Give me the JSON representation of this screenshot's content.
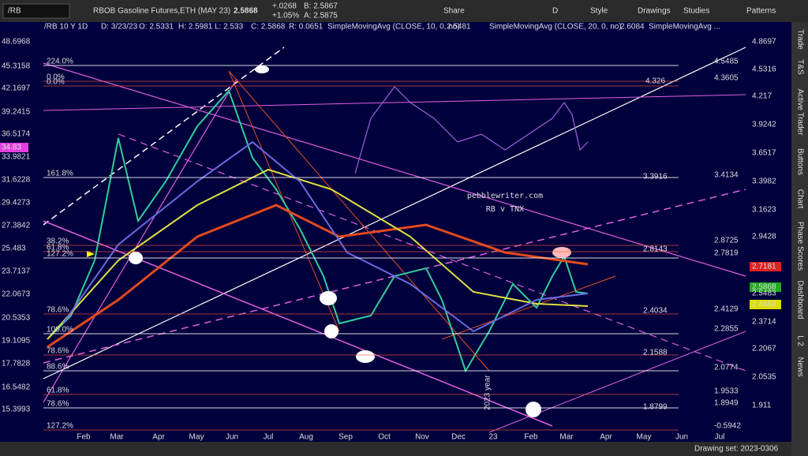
{
  "toolbar": {
    "symbol": "/RB",
    "description": "RBOB Gasoline Futures,ETH (MAY 23)",
    "last": "2.5868",
    "change": "+.0268",
    "change_pct": "+1.05%",
    "bid": "B: 2.5867",
    "ask": "A: 2.5875",
    "buttons": [
      "Share",
      "D",
      "Style",
      "Drawings",
      "Studies",
      "Patterns"
    ]
  },
  "chart_header": {
    "fields": [
      "/RB 10 Y 1D",
      "D: 3/23/23",
      "O: 2.5331",
      "H: 2.5981",
      "L: 2.533",
      "C: 2.5868",
      "R: 0.0651"
    ],
    "studies": [
      {
        "name": "SimpleMovingAvg (CLOSE, 10, 0, no)",
        "value": "2.5481"
      },
      {
        "name": "SimpleMovingAvg (CLOSE, 20, 0, no)",
        "value": "2.6084"
      },
      {
        "name": "SimpleMovingAvg ..."
      }
    ]
  },
  "left_axis": [
    "48.6968",
    "45.3158",
    "42.1697",
    "39.2415",
    "36.5174",
    "34.83",
    "33.9821",
    "31.6228",
    "29.4273",
    "27.3842",
    "25.483",
    "23.7137",
    "22.0673",
    "20.5353",
    "19.1095",
    "17.7828",
    "16.5482",
    "15.3993"
  ],
  "right_axis": [
    "4.8697",
    "4.5316",
    "4.217",
    "3.9242",
    "3.6517",
    "3.3982",
    "3.1623",
    "2.9428",
    "2.7181",
    "2.5868",
    "2.5483",
    "2.4668",
    "2.3714",
    "2.2067",
    "2.0535",
    "1.911"
  ],
  "fib_left": [
    "224.0%",
    "0.0%",
    "0.0%",
    "161.8%",
    "38.2%",
    "61.8%",
    "127.2%",
    "78.6%",
    "100.0%",
    "78.6%",
    "88.6%",
    "61.8%",
    "78.6%",
    "127.2%"
  ],
  "fib_right": [
    "4.5485",
    "4.326",
    "4.3605",
    "3.3916",
    "3.4134",
    "2.8725",
    "2.8143",
    "2.7819",
    "2.4034",
    "2.4129",
    "2.2855",
    "2.1588",
    "2.0774",
    "1.9533",
    "1.8799",
    "1.8949",
    "-0.5942"
  ],
  "x_axis": [
    "Feb",
    "Mar",
    "Apr",
    "May",
    "Jun",
    "Jul",
    "Aug",
    "Sep",
    "Oct",
    "Nov",
    "Dec",
    "23",
    "Feb",
    "Mar",
    "Apr",
    "May",
    "Jun",
    "Jul"
  ],
  "annotations": [
    "pebblewriter.com",
    "RB v TNX",
    "2023 year"
  ],
  "side_tabs": [
    "Trade",
    "T&S",
    "Active Trader",
    "Buttons",
    "Chart",
    "Phase Scores",
    "Dashboard",
    "L 2",
    "News"
  ],
  "footer": "Drawing set: 2023-0306"
}
